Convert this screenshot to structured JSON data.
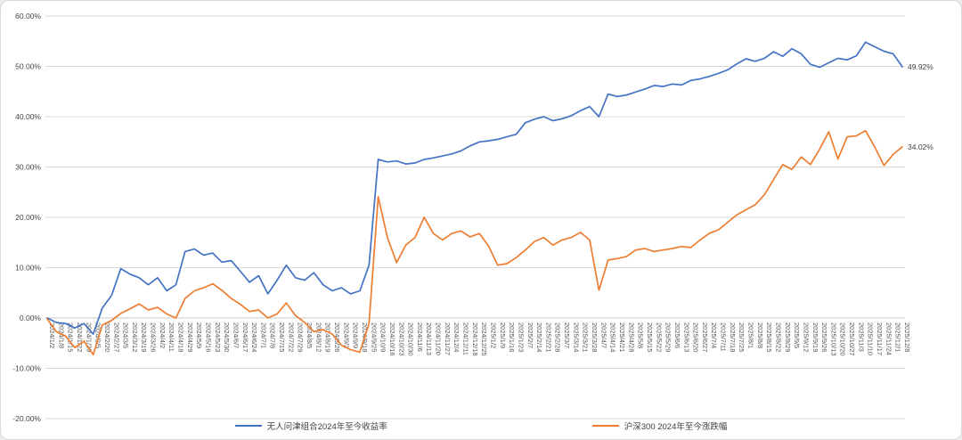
{
  "chart_data": {
    "type": "line",
    "title": "",
    "grid": true,
    "legend_position": "bottom",
    "y_axis": {
      "min": -20,
      "max": 60,
      "step": 10,
      "format": "percent",
      "tick_labels": [
        "60.00%",
        "50.00%",
        "40.00%",
        "30.00%",
        "20.00%",
        "10.00%",
        "0.00%",
        "-10.00%",
        "-20.00%"
      ]
    },
    "x_labels": [
      "2024/1/2",
      "2024/1/8",
      "2024/1/15",
      "2024/1/22",
      "2024/1/29",
      "2024/2/5",
      "2024/2/20",
      "2024/2/27",
      "2024/3/5",
      "2024/3/12",
      "2024/3/19",
      "2024/3/26",
      "2024/4/2",
      "2024/4/11",
      "2024/4/18",
      "2024/4/29",
      "2024/5/9",
      "2024/5/16",
      "2024/5/23",
      "2024/5/30",
      "2024/6/7",
      "2024/6/17",
      "2024/6/24",
      "2024/7/1",
      "2024/7/8",
      "2024/7/15",
      "2024/7/22",
      "2024/7/29",
      "2024/8/5",
      "2024/8/12",
      "2024/8/19",
      "2024/8/26",
      "2024/9/2",
      "2024/9/9",
      "2024/9/18",
      "2024/9/25",
      "2024/10/9",
      "2024/10/16",
      "2024/10/23",
      "2024/10/30",
      "2024/11/6",
      "2024/11/13",
      "2024/11/20",
      "2024/11/27",
      "2024/12/4",
      "2024/12/11",
      "2024/12/18",
      "2024/12/25",
      "2025/1/2",
      "2025/1/9",
      "2025/1/16",
      "2025/1/23",
      "2025/2/7",
      "2025/2/14",
      "2025/2/21",
      "2025/2/28",
      "2025/3/7",
      "2025/3/14",
      "2025/3/21",
      "2025/3/28",
      "2025/4/7",
      "2025/4/14",
      "2025/4/21",
      "2025/4/28",
      "2025/5/8",
      "2025/5/15",
      "2025/5/22",
      "2025/5/29",
      "2025/6/6",
      "2025/6/13",
      "2025/6/20",
      "2025/6/27",
      "2025/7/4",
      "2025/7/11",
      "2025/7/18",
      "2025/7/25",
      "2025/8/1",
      "2025/8/8",
      "2025/8/15",
      "2025/8/22",
      "2025/8/29",
      "2025/9/5",
      "2025/9/12",
      "2025/9/19",
      "2025/9/26",
      "2025/10/13",
      "2025/10/20",
      "2025/10/27",
      "2025/11/3",
      "2025/11/10",
      "2025/11/17",
      "2025/11/24",
      "2025/12/1",
      "2025/12/8"
    ],
    "series": [
      {
        "name": "无人问津组合2024年至今收益率",
        "color": "#4472C4",
        "end_label": "49.92%",
        "end_value": 49.92,
        "values": [
          0,
          -0.9,
          -1.1,
          -2,
          -1.1,
          -3.2,
          2,
          4.5,
          9.8,
          8.7,
          8,
          6.6,
          8,
          5.4,
          6.6,
          13.2,
          13.7,
          12.5,
          12.9,
          11.1,
          11.4,
          9.3,
          7.1,
          8.4,
          4.8,
          7.5,
          10.5,
          8,
          7.5,
          9,
          6.6,
          5.4,
          6,
          4.8,
          5.4,
          10.5,
          31.5,
          31,
          31.2,
          30.6,
          30.8,
          31.5,
          31.8,
          32.2,
          32.6,
          33.2,
          34.2,
          35,
          35.2,
          35.5,
          36,
          36.5,
          38.8,
          39.5,
          40,
          39.2,
          39.6,
          40.2,
          41.2,
          42,
          40,
          44.5,
          44,
          44.3,
          44.9,
          45.5,
          46.2,
          46,
          46.5,
          46.3,
          47.2,
          47.5,
          48,
          48.6,
          49.3,
          50.5,
          51.5,
          51,
          51.6,
          52.9,
          52,
          53.5,
          52.5,
          50.4,
          49.8,
          50.7,
          51.6,
          51.3,
          52.1,
          54.8,
          53.9,
          53,
          52.5,
          49.92
        ]
      },
      {
        "name": "沪深300 2024年至今涨跌幅",
        "color": "#ED7D31",
        "end_label": "34.02%",
        "end_value": 34.02,
        "values": [
          -0.2,
          -2.7,
          -3.6,
          -5.9,
          -4.6,
          -7.3,
          -1.4,
          -0.5,
          0.9,
          1.8,
          2.8,
          1.6,
          2.1,
          0.8,
          0,
          3.9,
          5.4,
          6,
          6.8,
          5.5,
          3.9,
          2.7,
          1.3,
          1.6,
          0,
          0.8,
          3,
          0.5,
          -0.9,
          -2.7,
          -2.3,
          -3.2,
          -5.4,
          -6.3,
          -6.8,
          -1.1,
          24.1,
          16,
          11,
          14.5,
          16,
          20,
          16.8,
          15.5,
          16.8,
          17.3,
          16.1,
          16.8,
          14.3,
          10.5,
          10.8,
          12,
          13.5,
          15.2,
          16,
          14.5,
          15.5,
          16,
          17,
          15.5,
          5.5,
          11.5,
          11.8,
          12.2,
          13.5,
          13.8,
          13.2,
          13.5,
          13.8,
          14.2,
          14,
          15.5,
          16.8,
          17.5,
          19,
          20.5,
          21.5,
          22.5,
          24.5,
          27.5,
          30.5,
          29.5,
          32,
          30.5,
          33.5,
          37,
          31.6,
          36,
          36.2,
          37.2,
          34,
          30.3,
          32.5,
          34.02
        ]
      }
    ],
    "gridline_color": "#d9d9d9"
  }
}
